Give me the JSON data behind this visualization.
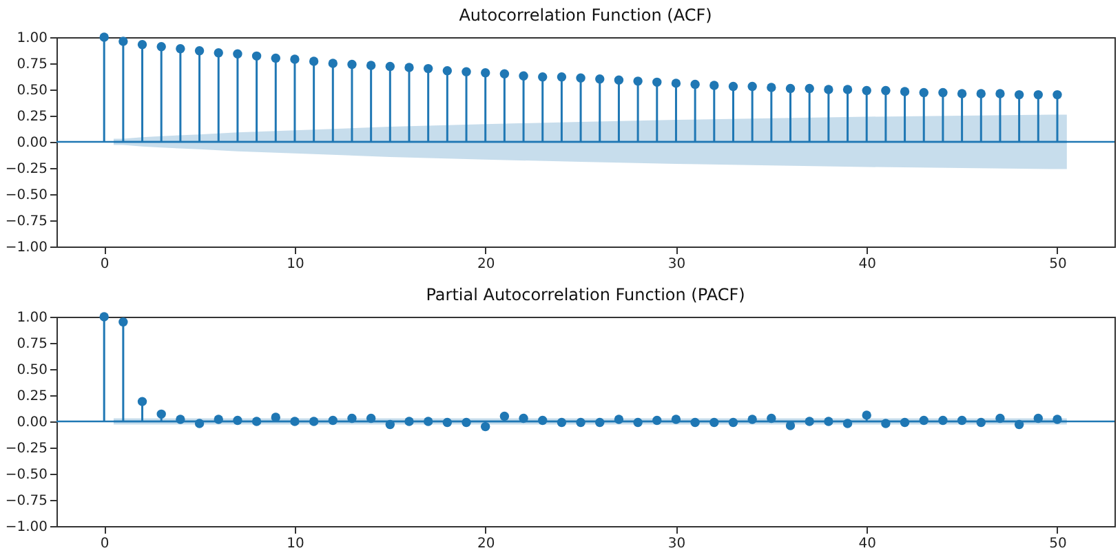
{
  "chart_data": [
    {
      "type": "lollipop",
      "title": "Autocorrelation Function (ACF)",
      "grid": false,
      "xlim": [
        -2.5,
        53
      ],
      "ylim": [
        -1,
        1
      ],
      "xticks": [
        0,
        10,
        20,
        30,
        40,
        50
      ],
      "yticks": [
        {
          "value": -1,
          "label": "−1.00"
        },
        {
          "value": -0.75,
          "label": "−0.75"
        },
        {
          "value": -0.5,
          "label": "−0.50"
        },
        {
          "value": -0.25,
          "label": "−0.25"
        },
        {
          "value": 0,
          "label": "0.00"
        },
        {
          "value": 0.25,
          "label": "0.25"
        },
        {
          "value": 0.5,
          "label": "0.50"
        },
        {
          "value": 0.75,
          "label": "0.75"
        },
        {
          "value": 1,
          "label": "1.00"
        }
      ],
      "ref_lines": [
        {
          "axis": "y",
          "value": 0,
          "color": "#1f77b4"
        }
      ],
      "series": [
        {
          "type": "lollipop",
          "marker": "circle",
          "color": "#1f77b4",
          "x": [
            0,
            1,
            2,
            3,
            4,
            5,
            6,
            7,
            8,
            9,
            10,
            11,
            12,
            13,
            14,
            15,
            16,
            17,
            18,
            19,
            20,
            21,
            22,
            23,
            24,
            25,
            26,
            27,
            28,
            29,
            30,
            31,
            32,
            33,
            34,
            35,
            36,
            37,
            38,
            39,
            40,
            41,
            42,
            43,
            44,
            45,
            46,
            47,
            48,
            49,
            50
          ],
          "values": [
            1.0,
            0.96,
            0.93,
            0.91,
            0.89,
            0.87,
            0.85,
            0.84,
            0.82,
            0.8,
            0.79,
            0.77,
            0.75,
            0.74,
            0.73,
            0.72,
            0.71,
            0.7,
            0.68,
            0.67,
            0.66,
            0.65,
            0.63,
            0.62,
            0.62,
            0.61,
            0.6,
            0.59,
            0.58,
            0.57,
            0.56,
            0.55,
            0.54,
            0.53,
            0.53,
            0.52,
            0.51,
            0.51,
            0.5,
            0.5,
            0.49,
            0.49,
            0.48,
            0.47,
            0.47,
            0.46,
            0.46,
            0.46,
            0.45,
            0.45,
            0.45
          ]
        },
        {
          "type": "line",
          "color": "#1f77b4",
          "x": [
            0.5,
            1,
            2,
            3,
            5,
            7,
            10,
            15,
            20,
            25,
            30,
            35,
            40,
            45,
            50,
            50.5
          ],
          "values": [
            0,
            0,
            0,
            0,
            0,
            0,
            0,
            0,
            0,
            0,
            0,
            0,
            0,
            0,
            0,
            0
          ],
          "lower": [
            -0.03,
            -0.03,
            -0.045,
            -0.055,
            -0.07,
            -0.09,
            -0.11,
            -0.145,
            -0.17,
            -0.19,
            -0.21,
            -0.225,
            -0.24,
            -0.25,
            -0.26,
            -0.26
          ],
          "upper": [
            0.03,
            0.03,
            0.045,
            0.055,
            0.07,
            0.09,
            0.11,
            0.145,
            0.17,
            0.19,
            0.21,
            0.225,
            0.24,
            0.25,
            0.26,
            0.26
          ]
        }
      ]
    },
    {
      "type": "lollipop",
      "title": "Partial Autocorrelation Function (PACF)",
      "grid": false,
      "xlim": [
        -2.5,
        53
      ],
      "ylim": [
        -1,
        1
      ],
      "xticks": [
        0,
        10,
        20,
        30,
        40,
        50
      ],
      "yticks": [
        {
          "value": -1,
          "label": "−1.00"
        },
        {
          "value": -0.75,
          "label": "−0.75"
        },
        {
          "value": -0.5,
          "label": "−0.50"
        },
        {
          "value": -0.25,
          "label": "−0.25"
        },
        {
          "value": 0,
          "label": "0.00"
        },
        {
          "value": 0.25,
          "label": "0.25"
        },
        {
          "value": 0.5,
          "label": "0.50"
        },
        {
          "value": 0.75,
          "label": "0.75"
        },
        {
          "value": 1,
          "label": "1.00"
        }
      ],
      "ref_lines": [
        {
          "axis": "y",
          "value": 0,
          "color": "#1f77b4"
        }
      ],
      "series": [
        {
          "type": "lollipop",
          "marker": "circle",
          "color": "#1f77b4",
          "x": [
            0,
            1,
            2,
            3,
            4,
            5,
            6,
            7,
            8,
            9,
            10,
            11,
            12,
            13,
            14,
            15,
            16,
            17,
            18,
            19,
            20,
            21,
            22,
            23,
            24,
            25,
            26,
            27,
            28,
            29,
            30,
            31,
            32,
            33,
            34,
            35,
            36,
            37,
            38,
            39,
            40,
            41,
            42,
            43,
            44,
            45,
            46,
            47,
            48,
            49,
            50
          ],
          "values": [
            1.0,
            0.95,
            0.19,
            0.07,
            0.02,
            -0.02,
            0.02,
            0.01,
            0.0,
            0.04,
            0.0,
            0.0,
            0.01,
            0.03,
            0.03,
            -0.03,
            0.0,
            0.0,
            -0.01,
            -0.01,
            -0.05,
            0.05,
            0.03,
            0.01,
            -0.01,
            -0.01,
            -0.01,
            0.02,
            -0.01,
            0.01,
            0.02,
            -0.01,
            -0.01,
            -0.01,
            0.02,
            0.03,
            -0.04,
            0.0,
            0.0,
            -0.02,
            0.06,
            -0.02,
            -0.01,
            0.01,
            0.01,
            0.01,
            -0.01,
            0.03,
            -0.03,
            0.03,
            0.02
          ]
        },
        {
          "type": "line",
          "color": "#1f77b4",
          "x": [
            0.5,
            50.5
          ],
          "values": [
            0,
            0
          ],
          "lower": [
            -0.03,
            -0.03
          ],
          "upper": [
            0.03,
            0.03
          ]
        }
      ]
    }
  ]
}
